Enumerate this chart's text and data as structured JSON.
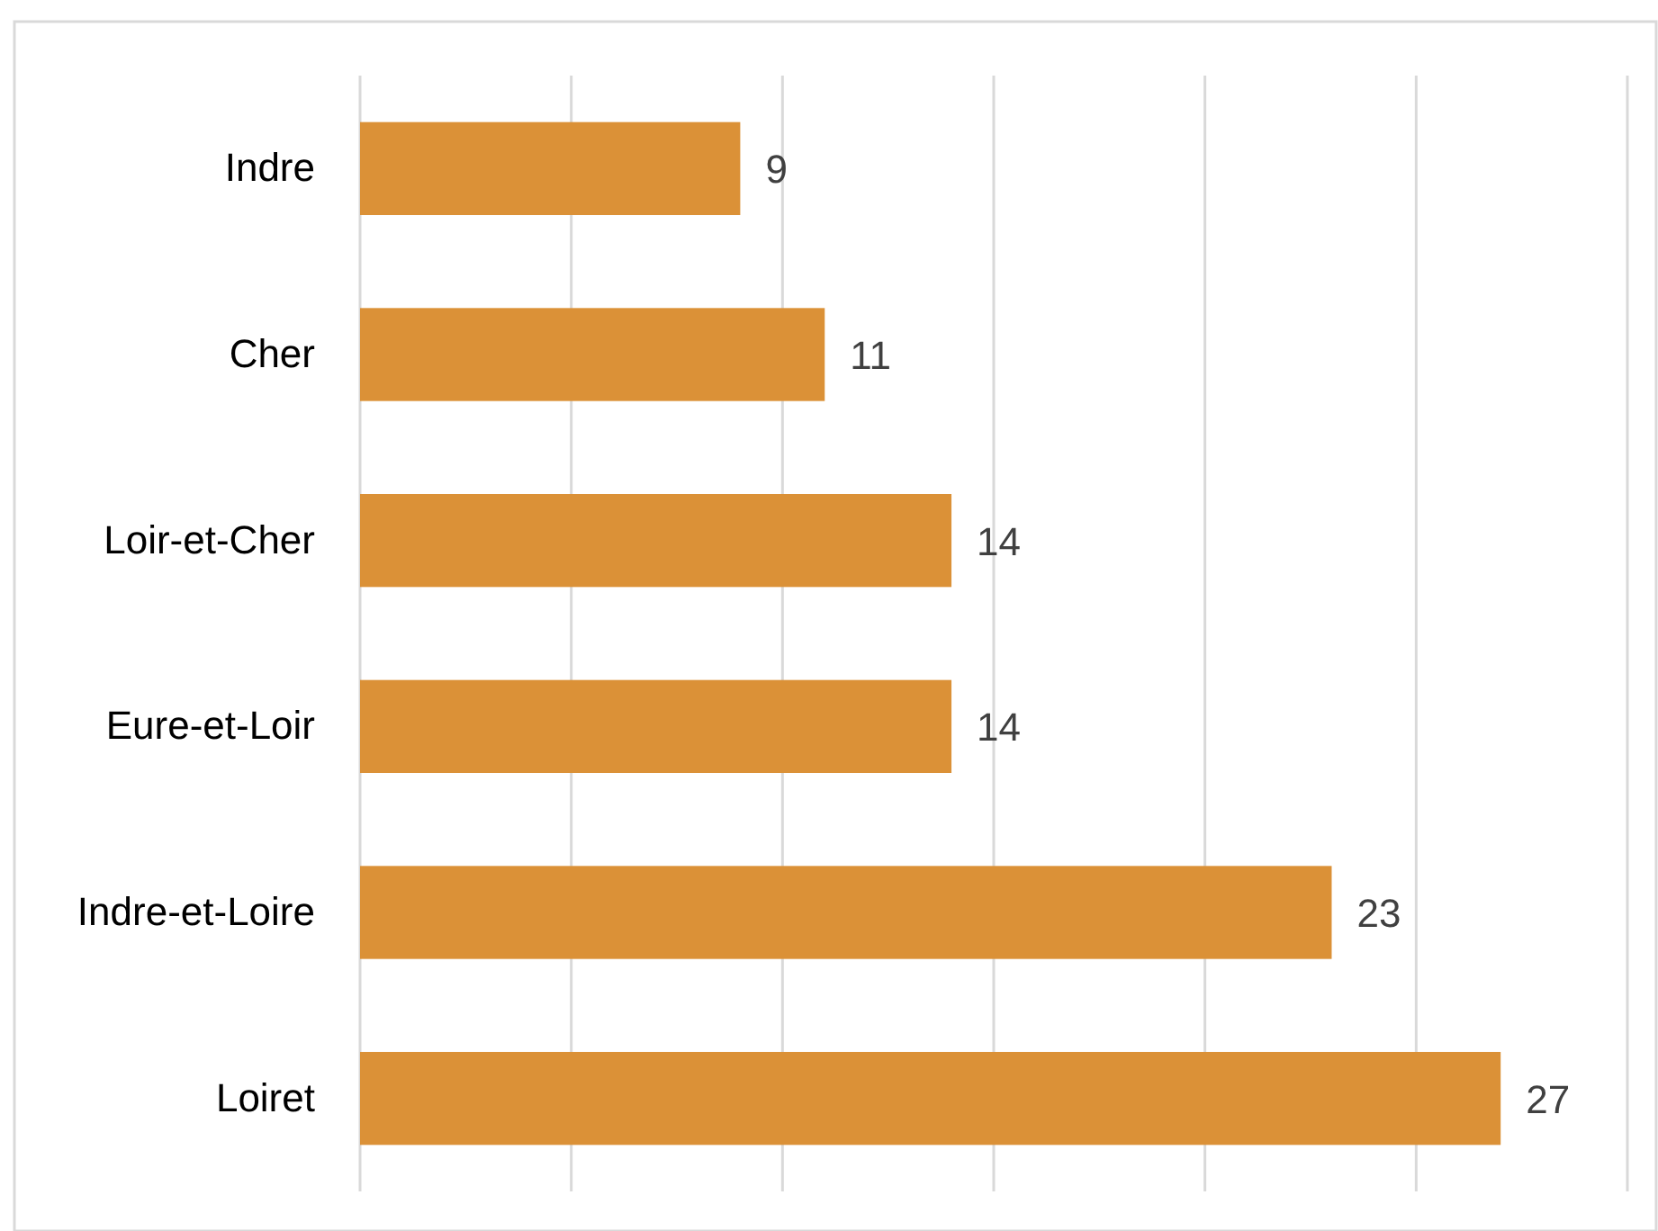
{
  "chart_data": {
    "type": "bar",
    "orientation": "horizontal",
    "categories": [
      "Indre",
      "Cher",
      "Loir-et-Cher",
      "Eure-et-Loir",
      "Indre-et-Loire",
      "Loiret"
    ],
    "values": [
      9,
      11,
      14,
      14,
      23,
      27
    ],
    "color": "#db9137",
    "xlim": [
      0,
      30
    ],
    "xticks": [
      {
        "value": 0,
        "label": null
      },
      {
        "value": 5,
        "label": null
      },
      {
        "value": 10,
        "label": null
      },
      {
        "value": 15,
        "label": null
      },
      {
        "value": 20,
        "label": null
      },
      {
        "value": 25,
        "label": null
      },
      {
        "value": 30,
        "label": null
      }
    ],
    "grid": "x",
    "tick_labels": "y",
    "data_labels": true
  }
}
